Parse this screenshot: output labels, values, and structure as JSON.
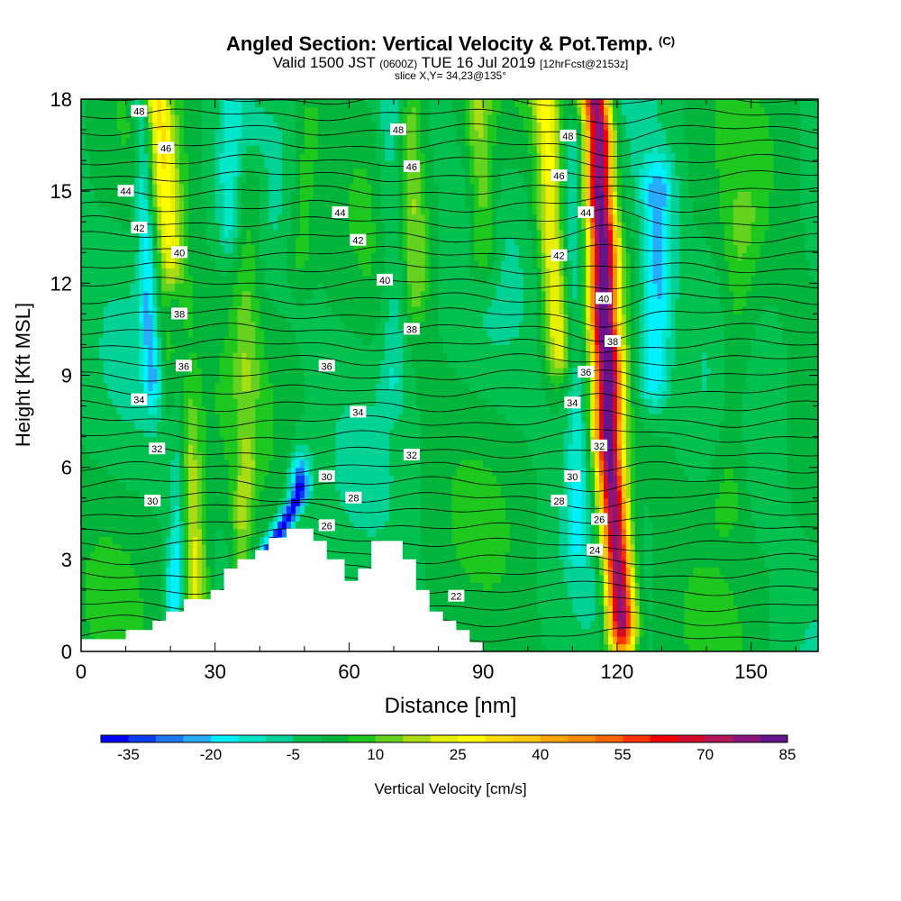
{
  "chart_data": {
    "type": "heatmap",
    "title": {
      "main": "Angled Section: Vertical Velocity & Pot.Temp.",
      "copyright": "(C)",
      "valid_label": "Valid 1500 JST",
      "utc": "(0600Z)",
      "date": "TUE 16 Jul 2019",
      "forecast": "[12hrFcst@2153z]",
      "slice": "slice X,Y= 34,23@135°"
    },
    "xlabel": "Distance [nm]",
    "ylabel": "Height [Kft MSL]",
    "xlim": [
      0,
      165
    ],
    "ylim": [
      0,
      18
    ],
    "x_ticks": [
      0,
      30,
      60,
      90,
      120,
      150
    ],
    "y_ticks": [
      0,
      3,
      6,
      9,
      12,
      15,
      18
    ],
    "colorbar": {
      "label": "Vertical Velocity [cm/s]",
      "min": -35,
      "step": 5,
      "tick_labels": [
        -35,
        -20,
        -5,
        10,
        25,
        40,
        55,
        70,
        85
      ],
      "colors": [
        "#0000ff",
        "#0a3cf0",
        "#1e78f5",
        "#28aaff",
        "#00f0ff",
        "#00e6c8",
        "#00d296",
        "#00c050",
        "#00b43c",
        "#1ec81e",
        "#64d21e",
        "#aadc14",
        "#e6f000",
        "#ffff00",
        "#ffdc00",
        "#ffc800",
        "#ffa500",
        "#ff8c00",
        "#ff6400",
        "#ff3200",
        "#f00000",
        "#d20a28",
        "#b4145a",
        "#8c147d",
        "#64148c"
      ]
    },
    "terrain_profile": [
      [
        0,
        0.4
      ],
      [
        10,
        0.4
      ],
      [
        10,
        0.7
      ],
      [
        16,
        0.7
      ],
      [
        16,
        1.0
      ],
      [
        19,
        1.0
      ],
      [
        19,
        1.3
      ],
      [
        23,
        1.3
      ],
      [
        23,
        1.7
      ],
      [
        29,
        1.7
      ],
      [
        29,
        2.0
      ],
      [
        32,
        2.0
      ],
      [
        32,
        2.7
      ],
      [
        35,
        2.7
      ],
      [
        35,
        3.0
      ],
      [
        39,
        3.0
      ],
      [
        39,
        3.3
      ],
      [
        42,
        3.3
      ],
      [
        42,
        3.7
      ],
      [
        46,
        3.7
      ],
      [
        46,
        4.0
      ],
      [
        52,
        4.0
      ],
      [
        52,
        3.6
      ],
      [
        55,
        3.6
      ],
      [
        55,
        3.0
      ],
      [
        59,
        3.0
      ],
      [
        59,
        2.3
      ],
      [
        62,
        2.3
      ],
      [
        62,
        2.7
      ],
      [
        65,
        2.7
      ],
      [
        65,
        3.6
      ],
      [
        72,
        3.6
      ],
      [
        72,
        3.0
      ],
      [
        75,
        3.0
      ],
      [
        75,
        2.0
      ],
      [
        78,
        2.0
      ],
      [
        78,
        1.3
      ],
      [
        81,
        1.3
      ],
      [
        81,
        1.0
      ],
      [
        84,
        1.0
      ],
      [
        84,
        0.7
      ],
      [
        87,
        0.7
      ],
      [
        87,
        0.3
      ],
      [
        90,
        0.3
      ],
      [
        90,
        0
      ]
    ],
    "updraft_bands": [
      {
        "x": [
          26,
          25,
          24,
          23,
          22,
          21,
          20,
          19,
          18,
          17
        ],
        "y": [
          1,
          3,
          5,
          7,
          9,
          11,
          13,
          15,
          17,
          18
        ],
        "peak": 30,
        "width": 3.2
      },
      {
        "x": [
          121,
          120,
          119,
          118,
          118,
          117,
          117,
          116,
          116,
          115
        ],
        "y": [
          1,
          3,
          5,
          7,
          9,
          11,
          13,
          15,
          17,
          18
        ],
        "peak": 88,
        "width": 3.0
      },
      {
        "x": [
          35,
          36,
          36,
          37
        ],
        "y": [
          1.5,
          3,
          4.5,
          6
        ],
        "peak": 20,
        "width": 2.2
      },
      {
        "x": [
          107,
          106,
          105,
          105,
          104
        ],
        "y": [
          10,
          12,
          14,
          16,
          18
        ],
        "peak": 30,
        "width": 3.0
      },
      {
        "x": [
          90,
          90,
          89,
          89
        ],
        "y": [
          13,
          15,
          17,
          18
        ],
        "peak": 20,
        "width": 3.0
      },
      {
        "x": [
          75,
          75,
          74,
          74
        ],
        "y": [
          12,
          14,
          16,
          18
        ],
        "peak": 17,
        "width": 2.5
      },
      {
        "x": [
          145,
          146,
          147,
          148
        ],
        "y": [
          5,
          8,
          11,
          14
        ],
        "peak": 14,
        "width": 4.0
      },
      {
        "x": [
          37,
          37,
          38
        ],
        "y": [
          9,
          12,
          15
        ],
        "peak": 15,
        "width": 3.0
      },
      {
        "x": [
          49,
          50,
          51
        ],
        "y": [
          13,
          15,
          17
        ],
        "peak": 14,
        "width": 3.0
      }
    ],
    "downdraft_bands": [
      {
        "x": [
          21,
          22,
          22,
          22,
          22,
          21
        ],
        "y": [
          2,
          4,
          6,
          8,
          10,
          11
        ],
        "peak": -18,
        "width": 2.2
      },
      {
        "x": [
          16,
          15,
          15,
          14,
          14,
          13
        ],
        "y": [
          9,
          11,
          13,
          15,
          17,
          18
        ],
        "peak": -13,
        "width": 2.0
      },
      {
        "x": [
          40,
          43,
          46,
          49
        ],
        "y": [
          2.8,
          3.5,
          4.3,
          5.2
        ],
        "peak": -34,
        "width": 2.2
      },
      {
        "x": [
          128,
          129,
          129
        ],
        "y": [
          9,
          12,
          15
        ],
        "peak": -17,
        "width": 3.5
      },
      {
        "x": [
          70,
          70,
          69,
          69
        ],
        "y": [
          9,
          12,
          15,
          18
        ],
        "peak": -5,
        "width": 3.0
      },
      {
        "x": [
          111,
          111,
          110,
          110
        ],
        "y": [
          4,
          8,
          12,
          16
        ],
        "peak": -8,
        "width": 2.5
      },
      {
        "x": [
          33,
          33,
          34
        ],
        "y": [
          14,
          16,
          18
        ],
        "peak": -5,
        "width": 2.5
      }
    ],
    "background_velocity": 5,
    "isentrope_labels": [
      {
        "text": "48",
        "x": 13,
        "y": 17.6
      },
      {
        "text": "46",
        "x": 19,
        "y": 16.4
      },
      {
        "text": "44",
        "x": 10,
        "y": 15.0
      },
      {
        "text": "42",
        "x": 13,
        "y": 13.8
      },
      {
        "text": "40",
        "x": 22,
        "y": 13.0
      },
      {
        "text": "38",
        "x": 22,
        "y": 11.0
      },
      {
        "text": "36",
        "x": 23,
        "y": 9.3
      },
      {
        "text": "34",
        "x": 13,
        "y": 8.2
      },
      {
        "text": "32",
        "x": 17,
        "y": 6.6
      },
      {
        "text": "30",
        "x": 16,
        "y": 4.9
      },
      {
        "text": "48",
        "x": 71,
        "y": 17.0
      },
      {
        "text": "46",
        "x": 74,
        "y": 15.8
      },
      {
        "text": "44",
        "x": 58,
        "y": 14.3
      },
      {
        "text": "42",
        "x": 62,
        "y": 13.4
      },
      {
        "text": "40",
        "x": 68,
        "y": 12.1
      },
      {
        "text": "38",
        "x": 74,
        "y": 10.5
      },
      {
        "text": "36",
        "x": 55,
        "y": 9.3
      },
      {
        "text": "34",
        "x": 62,
        "y": 7.8
      },
      {
        "text": "32",
        "x": 74,
        "y": 6.4
      },
      {
        "text": "30",
        "x": 55,
        "y": 5.7
      },
      {
        "text": "28",
        "x": 61,
        "y": 5.0
      },
      {
        "text": "26",
        "x": 55,
        "y": 4.1
      },
      {
        "text": "22",
        "x": 84,
        "y": 1.8
      },
      {
        "text": "48",
        "x": 109,
        "y": 16.8
      },
      {
        "text": "46",
        "x": 107,
        "y": 15.5
      },
      {
        "text": "44",
        "x": 113,
        "y": 14.3
      },
      {
        "text": "42",
        "x": 107,
        "y": 12.9
      },
      {
        "text": "40",
        "x": 117,
        "y": 11.5
      },
      {
        "text": "38",
        "x": 119,
        "y": 10.1
      },
      {
        "text": "36",
        "x": 113,
        "y": 9.1
      },
      {
        "text": "34",
        "x": 110,
        "y": 8.1
      },
      {
        "text": "32",
        "x": 116,
        "y": 6.7
      },
      {
        "text": "30",
        "x": 110,
        "y": 5.7
      },
      {
        "text": "28",
        "x": 107,
        "y": 4.9
      },
      {
        "text": "26",
        "x": 116,
        "y": 4.3
      },
      {
        "text": "24",
        "x": 115,
        "y": 3.3
      }
    ]
  }
}
